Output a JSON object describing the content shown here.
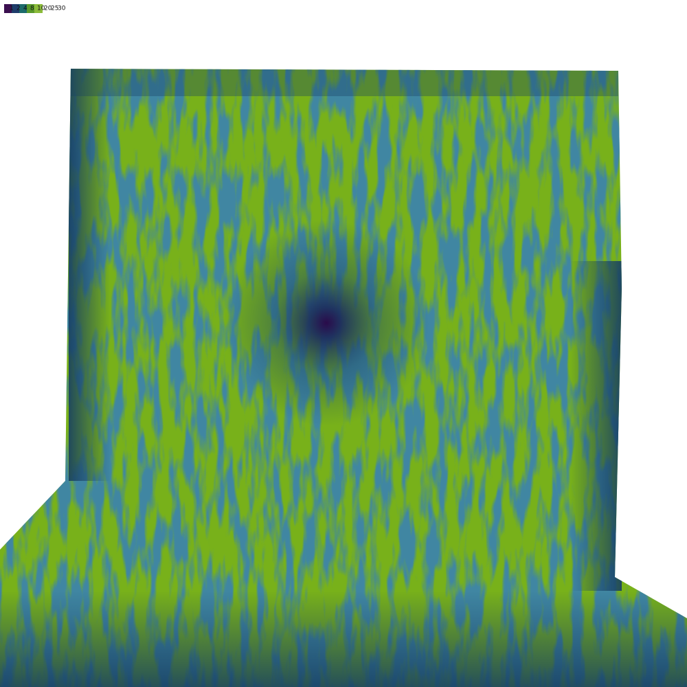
{
  "legend": {
    "labels": [
      "1",
      "2",
      "4",
      "8",
      "10",
      "20",
      "25",
      "30"
    ]
  }
}
